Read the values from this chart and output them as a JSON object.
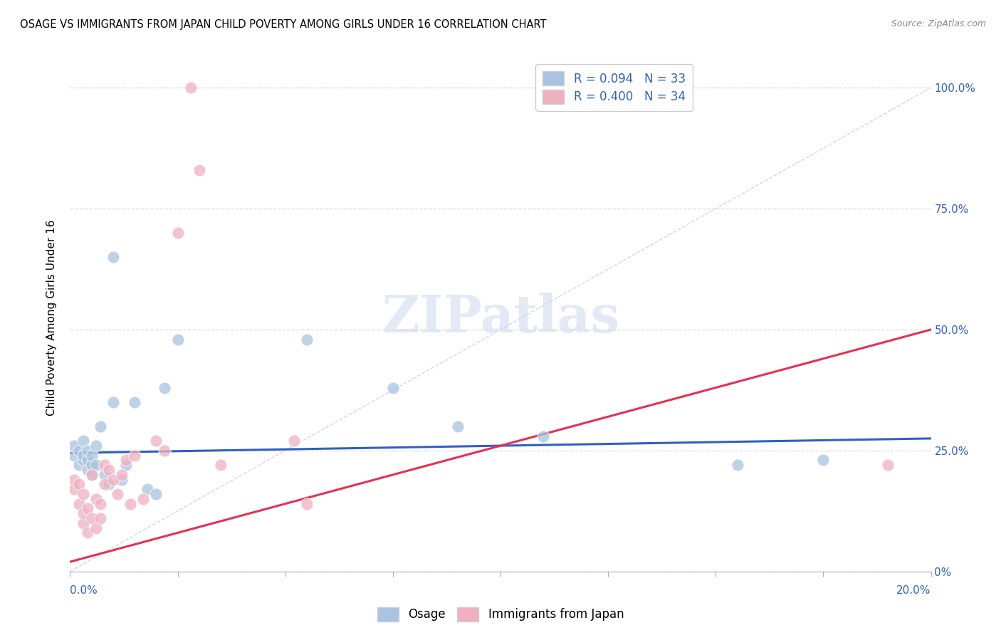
{
  "title": "OSAGE VS IMMIGRANTS FROM JAPAN CHILD POVERTY AMONG GIRLS UNDER 16 CORRELATION CHART",
  "source": "Source: ZipAtlas.com",
  "ylabel": "Child Poverty Among Girls Under 16",
  "ytick_values": [
    0.0,
    0.25,
    0.5,
    0.75,
    1.0
  ],
  "ytick_labels": [
    "0%",
    "25.0%",
    "50.0%",
    "75.0%",
    "100.0%"
  ],
  "xmin": 0.0,
  "xmax": 0.2,
  "ymin": 0.0,
  "ymax": 1.05,
  "watermark": "ZIPatlas",
  "legend_blue_label": "R = 0.094   N = 33",
  "legend_pink_label": "R = 0.400   N = 34",
  "legend_bottom_blue": "Osage",
  "legend_bottom_pink": "Immigrants from Japan",
  "osage_x": [
    0.001,
    0.001,
    0.002,
    0.002,
    0.003,
    0.003,
    0.003,
    0.004,
    0.004,
    0.004,
    0.005,
    0.005,
    0.005,
    0.006,
    0.006,
    0.007,
    0.008,
    0.009,
    0.01,
    0.01,
    0.012,
    0.013,
    0.015,
    0.018,
    0.02,
    0.022,
    0.025,
    0.055,
    0.075,
    0.09,
    0.11,
    0.155,
    0.175
  ],
  "osage_y": [
    0.24,
    0.26,
    0.22,
    0.25,
    0.23,
    0.24,
    0.27,
    0.21,
    0.23,
    0.25,
    0.2,
    0.22,
    0.24,
    0.22,
    0.26,
    0.3,
    0.2,
    0.18,
    0.35,
    0.65,
    0.19,
    0.22,
    0.35,
    0.17,
    0.16,
    0.38,
    0.48,
    0.48,
    0.38,
    0.3,
    0.28,
    0.22,
    0.23
  ],
  "japan_x": [
    0.001,
    0.001,
    0.002,
    0.002,
    0.003,
    0.003,
    0.003,
    0.004,
    0.004,
    0.005,
    0.005,
    0.006,
    0.006,
    0.007,
    0.007,
    0.008,
    0.008,
    0.009,
    0.01,
    0.011,
    0.012,
    0.013,
    0.014,
    0.015,
    0.017,
    0.02,
    0.022,
    0.025,
    0.028,
    0.03,
    0.035,
    0.052,
    0.055,
    0.19
  ],
  "japan_y": [
    0.17,
    0.19,
    0.14,
    0.18,
    0.1,
    0.12,
    0.16,
    0.08,
    0.13,
    0.11,
    0.2,
    0.09,
    0.15,
    0.11,
    0.14,
    0.18,
    0.22,
    0.21,
    0.19,
    0.16,
    0.2,
    0.23,
    0.14,
    0.24,
    0.15,
    0.27,
    0.25,
    0.7,
    1.0,
    0.83,
    0.22,
    0.27,
    0.14,
    0.22
  ],
  "blue_color": "#a8c4e0",
  "pink_color": "#f0b0c0",
  "blue_line_color": "#3060c0",
  "pink_line_color": "#e83050",
  "ref_line_color": "#d0d8f0",
  "background_color": "#ffffff",
  "grid_color": "#d8d8e8",
  "tick_color": "#aaaacc"
}
